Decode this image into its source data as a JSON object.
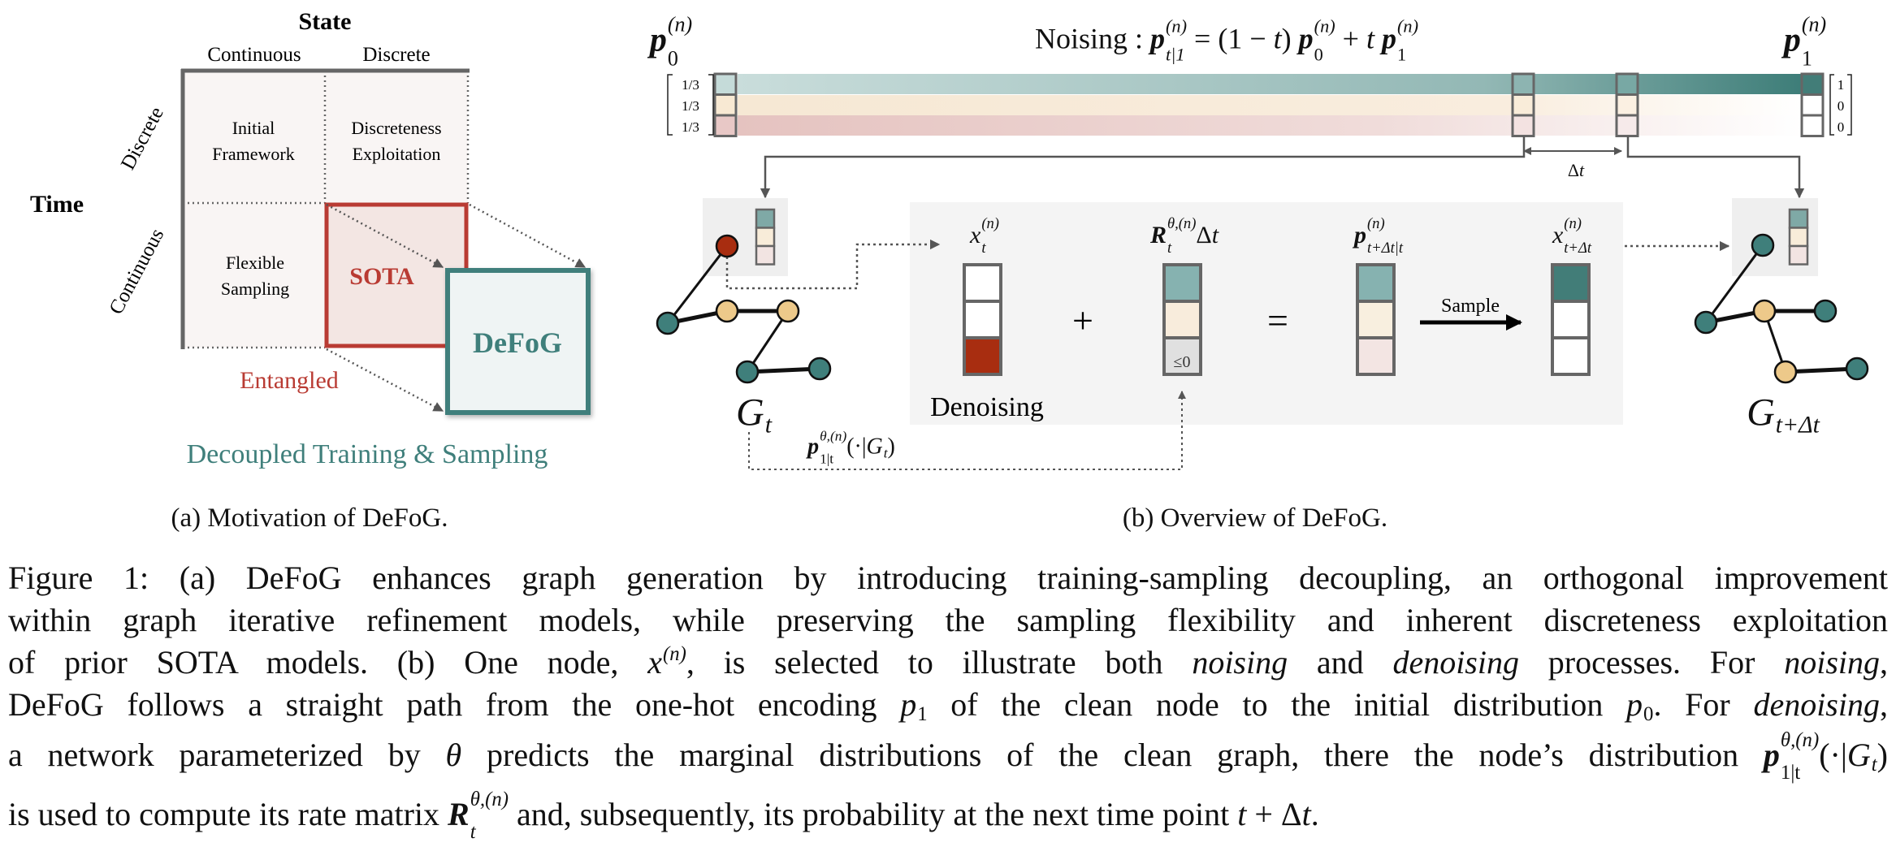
{
  "panel_a": {
    "state_header": "State",
    "state_continuous": "Continuous",
    "state_discrete": "Discrete",
    "time_header": "Time",
    "time_discrete": "Discrete",
    "time_continuous": "Continuous",
    "cell_initial": {
      "line1": "Initial",
      "line2": "Framework"
    },
    "cell_discreteness": {
      "line1": "Discreteness",
      "line2": "Exploitation"
    },
    "cell_flexible": {
      "line1": "Flexible",
      "line2": "Sampling"
    },
    "sota": "SOTA",
    "defog": "DeFoG",
    "entangled": "Entangled",
    "decoupled": "Decoupled Training & Sampling",
    "subcaption": "(a) Motivation of DeFoG."
  },
  "panel_b": {
    "p0_label": [
      {
        "base": "p",
        "k": "bm",
        "sup": "(n)",
        "sub": "0"
      }
    ],
    "p1_label": [
      {
        "base": "p",
        "k": "bm",
        "sup": "(n)",
        "sub": "1"
      }
    ],
    "noising_equation": [
      {
        "t": "Noising : ",
        "k": "r"
      },
      {
        "base": "p",
        "k": "bm",
        "sup": "(n)",
        "sub": "t|1"
      },
      {
        "t": " = (1 − ",
        "k": "r"
      },
      {
        "t": "t",
        "k": "m"
      },
      {
        "t": ") ",
        "k": "r"
      },
      {
        "base": "p",
        "k": "bm",
        "sup": "(n)",
        "sub": "0"
      },
      {
        "t": " + ",
        "k": "r"
      },
      {
        "t": "t ",
        "k": "m"
      },
      {
        "base": "p",
        "k": "bm",
        "sup": "(n)",
        "sub": "1"
      }
    ],
    "p0_values": [
      "1/3",
      "1/3",
      "1/3"
    ],
    "p1_values": [
      "1",
      "0",
      "0"
    ],
    "delta_t": [
      {
        "t": "Δ",
        "k": "r"
      },
      {
        "t": "t",
        "k": "m"
      }
    ],
    "xt_label": [
      {
        "base": "x",
        "k": "m",
        "sup": "(n)",
        "sub": "t"
      }
    ],
    "rate_label": [
      {
        "base": "R",
        "k": "bm",
        "sup": "θ,(n)",
        "sub": "t"
      },
      {
        "t": "Δ",
        "k": "r"
      },
      {
        "t": "t",
        "k": "m"
      }
    ],
    "p_next_label": [
      {
        "base": "p",
        "k": "bm",
        "sup": "(n)",
        "sub": "t+Δt|t"
      }
    ],
    "x_next_label": [
      {
        "base": "x",
        "k": "m",
        "sup": "(n)",
        "sub": "t+Δt"
      }
    ],
    "plus": "+",
    "equals": "=",
    "leq_zero": "≤0",
    "sample": "Sample",
    "denoising": "Denoising",
    "gt_label": [
      {
        "base": "G",
        "k": "m",
        "sub": "t"
      }
    ],
    "gnext_label": [
      {
        "base": "G",
        "k": "m",
        "sub": "t+Δt"
      }
    ],
    "pred_label": [
      {
        "base": "p",
        "k": "bm",
        "sup": "θ,(n)",
        "sub": "1|t"
      },
      {
        "t": "(·|",
        "k": "r"
      },
      {
        "base": "G",
        "k": "m",
        "sub": "t"
      },
      {
        "t": ")",
        "k": "r"
      }
    ],
    "subcaption": "(b) Overview of DeFoG."
  },
  "colors": {
    "teal": "#3f7f7b",
    "teal_mid": "#86b2b0",
    "tan": "#f8ecdc",
    "pink": "#f3e5e3",
    "red_node": "#a82d10",
    "tan_node": "#edc98a",
    "sota_red": "#b93b33"
  },
  "caption": {
    "lines": [
      [
        {
          "t": "Figure 1: (a) DeFoG enhances graph generation by introducing training-sampling decoupling, an orthogonal improvement",
          "k": "r"
        }
      ],
      [
        {
          "t": "within graph iterative refinement models, while preserving the sampling flexibility and inherent discreteness exploitation",
          "k": "r"
        }
      ],
      [
        {
          "t": "of prior SOTA models. (b) One node, ",
          "k": "r"
        },
        {
          "base": "x",
          "k": "m",
          "sup": "(n)"
        },
        {
          "t": ", is selected to illustrate both ",
          "k": "r"
        },
        {
          "t": "noising",
          "k": "i"
        },
        {
          "t": " and ",
          "k": "r"
        },
        {
          "t": "denoising",
          "k": "i"
        },
        {
          "t": " processes.  For ",
          "k": "r"
        },
        {
          "t": "noising",
          "k": "i"
        },
        {
          "t": ",",
          "k": "r"
        }
      ],
      [
        {
          "t": "DeFoG follows a straight path from the one-hot encoding ",
          "k": "r"
        },
        {
          "base": "p",
          "k": "m",
          "sub": "1"
        },
        {
          "t": " of the clean node to the initial distribution ",
          "k": "r"
        },
        {
          "base": "p",
          "k": "m",
          "sub": "0"
        },
        {
          "t": ". For ",
          "k": "r"
        },
        {
          "t": "denoising",
          "k": "i"
        },
        {
          "t": ",",
          "k": "r"
        }
      ],
      [
        {
          "t": "a network parameterized by ",
          "k": "r"
        },
        {
          "t": "θ",
          "k": "m"
        },
        {
          "t": " predicts the marginal distributions of the clean graph, there the node’s distribution ",
          "k": "r"
        },
        {
          "base": "p",
          "k": "bm",
          "sup": "θ,(n)",
          "sub": "1|t"
        },
        {
          "t": "(·|",
          "k": "r"
        },
        {
          "base": "G",
          "k": "m",
          "sub": "t"
        },
        {
          "t": ")",
          "k": "r"
        }
      ],
      [
        {
          "t": "is used to compute its rate matrix ",
          "k": "r"
        },
        {
          "base": "R",
          "k": "bm",
          "sup": "θ,(n)",
          "sub": "t"
        },
        {
          "t": " and, subsequently, its probability at the next time point ",
          "k": "r"
        },
        {
          "t": "t",
          "k": "m"
        },
        {
          "t": " + Δ",
          "k": "r"
        },
        {
          "t": "t",
          "k": "m"
        },
        {
          "t": ".",
          "k": "r"
        }
      ]
    ]
  }
}
